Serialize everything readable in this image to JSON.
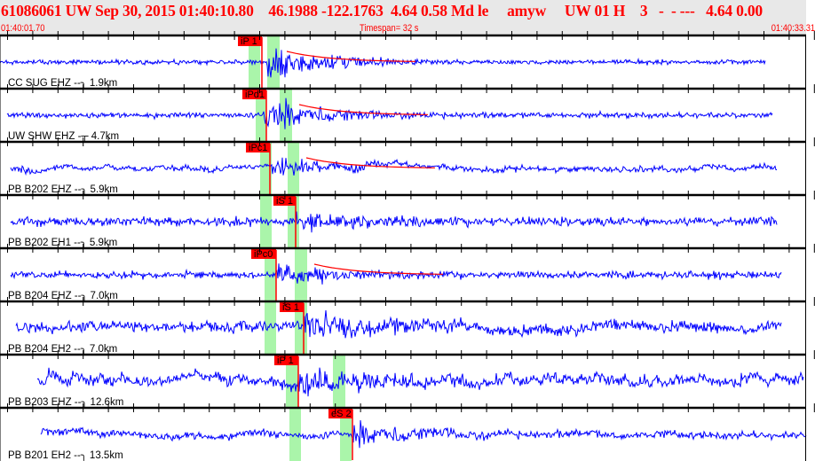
{
  "header": {
    "title": "61086061 UW Sep 30, 2015 01:40:10.80    46.1988 -122.1763  4.64 0.58 Md le     amyw     UW 01 H    3   -  - ---   4.64 0.00",
    "start_time": "01:40:01.70",
    "timespan": "Timespan=  32 s",
    "end_time": "01:40:33.31"
  },
  "colors": {
    "header_text": "#ff0000",
    "waveform": "#0000ff",
    "pick": "#ff0000",
    "pick_window": "#aaf5aa",
    "header_bg": "#e8e8e8"
  },
  "traces": [
    {
      "label": "CC SUG EHZ --╮ 1.9km",
      "pick": "iP 1"
    },
    {
      "label": "UW SHW EHZ -┬ 4.7km",
      "pick": "iPd1"
    },
    {
      "label": "PB B202 EHZ --╮ 5.9km",
      "pick": "iPc1"
    },
    {
      "label": "PB B202 EH1 --╮ 5.9km",
      "pick": "iS 1"
    },
    {
      "label": "PB B204 EHZ --╮ 7.0km",
      "pick": "iPc0"
    },
    {
      "label": "PB B204 EH2 --╮ 7.0km",
      "pick": "iS 1"
    },
    {
      "label": "PB B203 EHZ --╮ 12.6km",
      "pick": "iP 1"
    },
    {
      "label": "PB B201 EH2 --╮ 13.5km",
      "pick": "eS 2"
    }
  ]
}
